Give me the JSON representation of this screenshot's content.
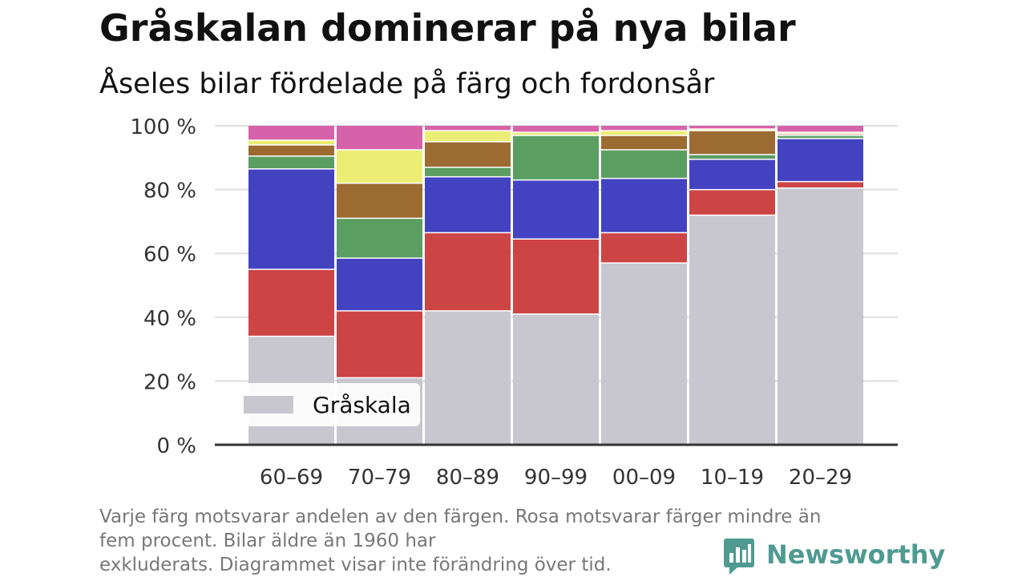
{
  "header": {
    "title": "Gråskalan dominerar på nya bilar",
    "subtitle": "Åseles bilar fördelade på färg och fordonsår"
  },
  "footnote": {
    "line1": "Varje färg motsvarar andelen av den färgen. Rosa motsvarar färger mindre än",
    "line2": "fem procent. Bilar äldre än 1960 har",
    "line3": "exkluderats. Diagrammet visar inte förändring över tid."
  },
  "brand": {
    "name": "Newsworthy",
    "icon": "newsworthy-logo-icon",
    "color": "#4f9a91"
  },
  "legend": {
    "label": "Gråskala",
    "color": "#c8c7cf"
  },
  "chart_data": {
    "type": "bar",
    "stacked": true,
    "categories": [
      "60–69",
      "70–79",
      "80–89",
      "90–99",
      "00–09",
      "10–19",
      "20–29"
    ],
    "ylim": [
      0,
      100
    ],
    "yticks": [
      0,
      20,
      40,
      60,
      80,
      100
    ],
    "ytick_labels": [
      "0 %",
      "20 %",
      "40 %",
      "60 %",
      "80 %",
      "100 %"
    ],
    "grid": true,
    "legend_placement": "bottom-left",
    "series": [
      {
        "name": "Gråskala",
        "color": "#c8c7cf",
        "values": [
          34,
          21,
          42,
          41,
          57,
          72,
          80.5
        ]
      },
      {
        "color": "#cc4444",
        "values": [
          21,
          21,
          24.5,
          23.5,
          9.5,
          8,
          2
        ]
      },
      {
        "color": "#4343c2",
        "values": [
          31.5,
          16.5,
          17.5,
          18.5,
          17,
          9.5,
          13.5
        ]
      },
      {
        "color": "#5a9e62",
        "values": [
          4,
          12.5,
          3,
          14,
          9,
          1.5,
          1
        ]
      },
      {
        "color": "#9c6b32",
        "values": [
          3.5,
          11,
          8,
          0,
          4.5,
          7.5,
          0.5
        ]
      },
      {
        "color": "#eced74",
        "values": [
          1.5,
          10.5,
          3.5,
          1,
          1.5,
          0.5,
          0.5
        ]
      },
      {
        "color": "#d662aa",
        "values": [
          4.5,
          7.5,
          1.5,
          2,
          1.5,
          1,
          2
        ]
      }
    ]
  }
}
